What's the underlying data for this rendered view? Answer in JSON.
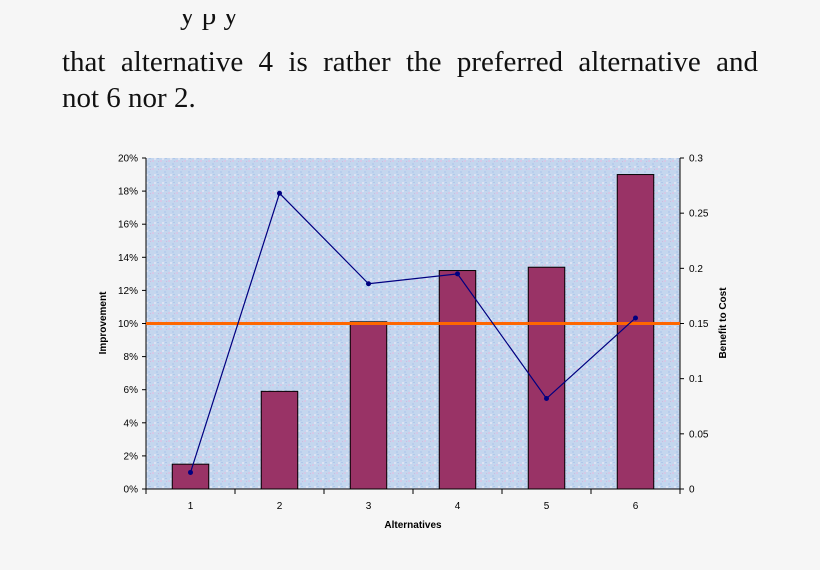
{
  "document": {
    "fragment_top": "y p y",
    "line1": "that alternative 4 is rather the preferred alternative and",
    "line2": "not 6 nor 2."
  },
  "chart_data": {
    "type": "bar",
    "categories": [
      "1",
      "2",
      "3",
      "4",
      "5",
      "6"
    ],
    "series": [
      {
        "axis": "left",
        "type": "bar",
        "color": "#993366",
        "values": [
          1.5,
          5.9,
          10.1,
          13.2,
          13.4,
          19.0
        ]
      },
      {
        "axis": "right",
        "type": "line",
        "color": "#000080",
        "values": [
          0.015,
          0.268,
          0.186,
          0.195,
          0.082,
          0.155
        ]
      }
    ],
    "reference_line": {
      "axis": "left",
      "value": 10,
      "color": "#ff6600"
    },
    "xlabel": "Alternatives",
    "ylabel": "Improvement",
    "y2label": "Benefit to Cost",
    "ylim": [
      0,
      20
    ],
    "y2lim": [
      0,
      0.3
    ],
    "y_ticks": [
      "0%",
      "2%",
      "4%",
      "6%",
      "8%",
      "10%",
      "12%",
      "14%",
      "16%",
      "18%",
      "20%"
    ],
    "y2_ticks": [
      "0",
      "0.05",
      "0.1",
      "0.15",
      "0.2",
      "0.25",
      "0.3"
    ],
    "plot_background": "textured light blue",
    "grid": false
  }
}
